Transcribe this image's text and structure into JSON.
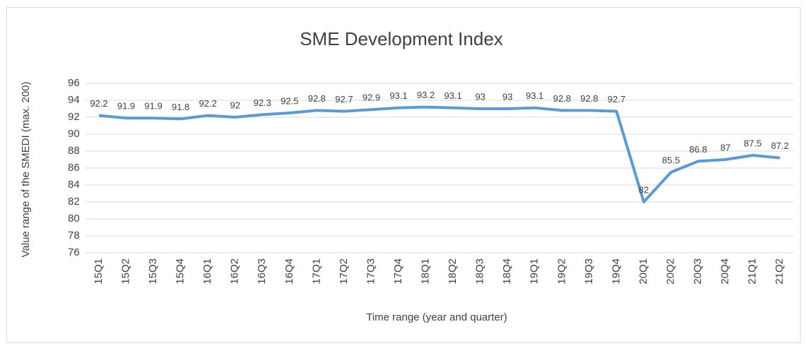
{
  "chart_data": {
    "type": "line",
    "title": "SME Development Index",
    "x_label": "Time range (year and quarter)",
    "y_label": "Value range of the SMEDI (max. 200)",
    "categories": [
      "15Q1",
      "15Q2",
      "15Q3",
      "15Q4",
      "16Q1",
      "16Q2",
      "16Q3",
      "16Q4",
      "17Q1",
      "17Q2",
      "17Q3",
      "17Q4",
      "18Q1",
      "18Q2",
      "18Q3",
      "18Q4",
      "19Q1",
      "19Q2",
      "19Q3",
      "19Q4",
      "20Q1",
      "20Q2",
      "20Q3",
      "20Q4",
      "21Q1",
      "21Q2"
    ],
    "values": [
      92.2,
      91.9,
      91.9,
      91.8,
      92.2,
      92,
      92.3,
      92.5,
      92.8,
      92.7,
      92.9,
      93.1,
      93.2,
      93.1,
      93,
      93,
      93.1,
      92.8,
      92.8,
      92.7,
      82,
      85.5,
      86.8,
      87,
      87.5,
      87.2
    ],
    "color": "#5b9bd5",
    "ylim": [
      76,
      96
    ],
    "yticks": [
      76,
      78,
      80,
      82,
      84,
      86,
      88,
      90,
      92,
      94,
      96
    ],
    "grid": true
  }
}
